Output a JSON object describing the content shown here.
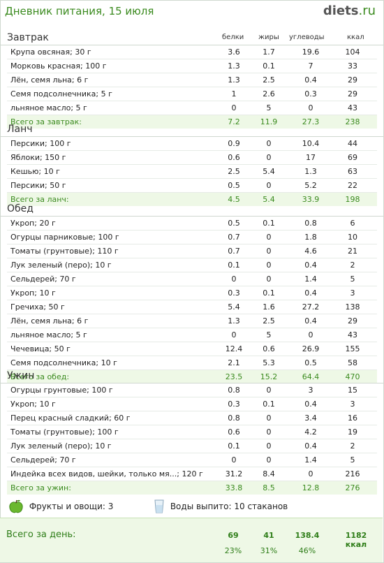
{
  "header": {
    "title": "Дневник питания, 15 июля",
    "logo_main": "diets",
    "logo_tld": ".ru"
  },
  "columns": {
    "protein": "белки",
    "fat": "жиры",
    "carbs": "углеводы",
    "kcal": "ккал"
  },
  "meals": [
    {
      "title": "Завтрак",
      "items": [
        {
          "name": "Крупа овсяная; 30 г",
          "p": "3.6",
          "f": "1.7",
          "c": "19.6",
          "k": "104"
        },
        {
          "name": "Морковь красная; 100 г",
          "p": "1.3",
          "f": "0.1",
          "c": "7",
          "k": "33"
        },
        {
          "name": "Лён, семя льна; 6 г",
          "p": "1.3",
          "f": "2.5",
          "c": "0.4",
          "k": "29"
        },
        {
          "name": "Семя подсолнечника; 5 г",
          "p": "1",
          "f": "2.6",
          "c": "0.3",
          "k": "29"
        },
        {
          "name": "льняное масло; 5 г",
          "p": "0",
          "f": "5",
          "c": "0",
          "k": "43"
        }
      ],
      "total": {
        "label": "Всего за завтрак:",
        "p": "7.2",
        "f": "11.9",
        "c": "27.3",
        "k": "238"
      }
    },
    {
      "title": "Ланч",
      "items": [
        {
          "name": "Персики; 100 г",
          "p": "0.9",
          "f": "0",
          "c": "10.4",
          "k": "44"
        },
        {
          "name": "Яблоки; 150 г",
          "p": "0.6",
          "f": "0",
          "c": "17",
          "k": "69"
        },
        {
          "name": "Кешью; 10 г",
          "p": "2.5",
          "f": "5.4",
          "c": "1.3",
          "k": "63"
        },
        {
          "name": "Персики; 50 г",
          "p": "0.5",
          "f": "0",
          "c": "5.2",
          "k": "22"
        }
      ],
      "total": {
        "label": "Всего за ланч:",
        "p": "4.5",
        "f": "5.4",
        "c": "33.9",
        "k": "198"
      }
    },
    {
      "title": "Обед",
      "items": [
        {
          "name": "Укроп; 20 г",
          "p": "0.5",
          "f": "0.1",
          "c": "0.8",
          "k": "6"
        },
        {
          "name": "Огурцы парниковые; 100 г",
          "p": "0.7",
          "f": "0",
          "c": "1.8",
          "k": "10"
        },
        {
          "name": "Томаты (грунтовые); 110 г",
          "p": "0.7",
          "f": "0",
          "c": "4.6",
          "k": "21"
        },
        {
          "name": "Лук зеленый (перо); 10 г",
          "p": "0.1",
          "f": "0",
          "c": "0.4",
          "k": "2"
        },
        {
          "name": "Сельдерей; 70 г",
          "p": "0",
          "f": "0",
          "c": "1.4",
          "k": "5"
        },
        {
          "name": "Укроп; 10 г",
          "p": "0.3",
          "f": "0.1",
          "c": "0.4",
          "k": "3"
        },
        {
          "name": "Гречиха; 50 г",
          "p": "5.4",
          "f": "1.6",
          "c": "27.2",
          "k": "138"
        },
        {
          "name": "Лён, семя льна; 6 г",
          "p": "1.3",
          "f": "2.5",
          "c": "0.4",
          "k": "29"
        },
        {
          "name": "льняное масло; 5 г",
          "p": "0",
          "f": "5",
          "c": "0",
          "k": "43"
        },
        {
          "name": "Чечевица; 50 г",
          "p": "12.4",
          "f": "0.6",
          "c": "26.9",
          "k": "155"
        },
        {
          "name": "Семя подсолнечника; 10 г",
          "p": "2.1",
          "f": "5.3",
          "c": "0.5",
          "k": "58"
        }
      ],
      "total": {
        "label": "Всего за обед:",
        "p": "23.5",
        "f": "15.2",
        "c": "64.4",
        "k": "470"
      }
    },
    {
      "title": "Ужин",
      "items": [
        {
          "name": "Огурцы грунтовые; 100 г",
          "p": "0.8",
          "f": "0",
          "c": "3",
          "k": "15"
        },
        {
          "name": "Укроп; 10 г",
          "p": "0.3",
          "f": "0.1",
          "c": "0.4",
          "k": "3"
        },
        {
          "name": "Перец красный сладкий; 60 г",
          "p": "0.8",
          "f": "0",
          "c": "3.4",
          "k": "16"
        },
        {
          "name": "Томаты (грунтовые); 100 г",
          "p": "0.6",
          "f": "0",
          "c": "4.2",
          "k": "19"
        },
        {
          "name": "Лук зеленый (перо); 10 г",
          "p": "0.1",
          "f": "0",
          "c": "0.4",
          "k": "2"
        },
        {
          "name": "Сельдерей; 70 г",
          "p": "0",
          "f": "0",
          "c": "1.4",
          "k": "5"
        },
        {
          "name": "Индейка всех видов, шейки, только мя...; 120 г",
          "p": "31.2",
          "f": "8.4",
          "c": "0",
          "k": "216"
        }
      ],
      "total": {
        "label": "Всего за ужин:",
        "p": "33.8",
        "f": "8.5",
        "c": "12.8",
        "k": "276"
      }
    }
  ],
  "extras": {
    "fruits_label": "Фрукты и овощи: 3",
    "fruits_icon": "apple-icon",
    "water_label": "Воды выпито: 10 стаканов",
    "water_icon": "glass-icon"
  },
  "day_total": {
    "label": "Всего за день:",
    "p": "69",
    "f": "41",
    "c": "138.4",
    "k": "1182 ккал",
    "p_pct": "23%",
    "f_pct": "31%",
    "c_pct": "46%"
  },
  "colors": {
    "accent": "#3a8a1e",
    "total_bg": "#eef8e6"
  }
}
